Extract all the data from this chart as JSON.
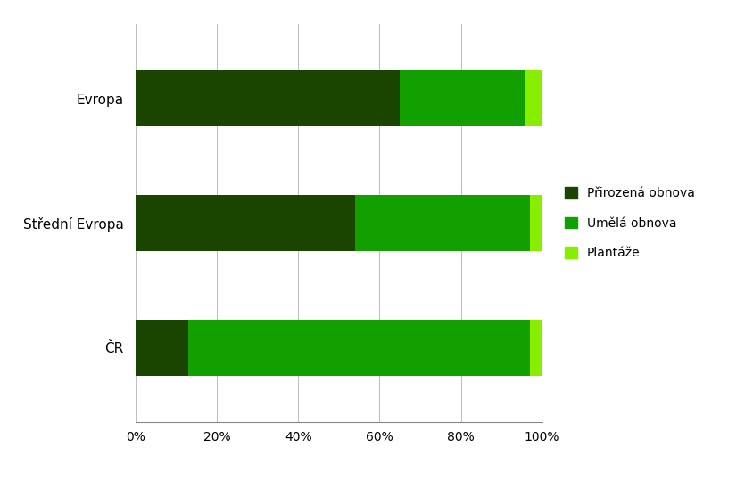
{
  "categories": [
    "ČR",
    "Střední Evropa",
    "Evropa"
  ],
  "series": [
    {
      "label": "Přirozená obnova",
      "color": "#1a4500",
      "values": [
        13,
        54,
        65
      ]
    },
    {
      "label": "Umělá obnova",
      "color": "#12a000",
      "values": [
        84,
        43,
        31
      ]
    },
    {
      "label": "Plantáže",
      "color": "#88ee00",
      "values": [
        3,
        3,
        4
      ]
    }
  ],
  "xlim": [
    0,
    100
  ],
  "xtick_labels": [
    "0%",
    "20%",
    "40%",
    "60%",
    "80%",
    "100%"
  ],
  "xtick_values": [
    0,
    20,
    40,
    60,
    80,
    100
  ],
  "background_color": "#ffffff",
  "grid_color": "#c0c0c0",
  "bar_height": 0.45,
  "legend_fontsize": 10,
  "tick_fontsize": 10,
  "ylabel_fontsize": 11,
  "figsize": [
    8.44,
    5.39
  ],
  "dpi": 100
}
